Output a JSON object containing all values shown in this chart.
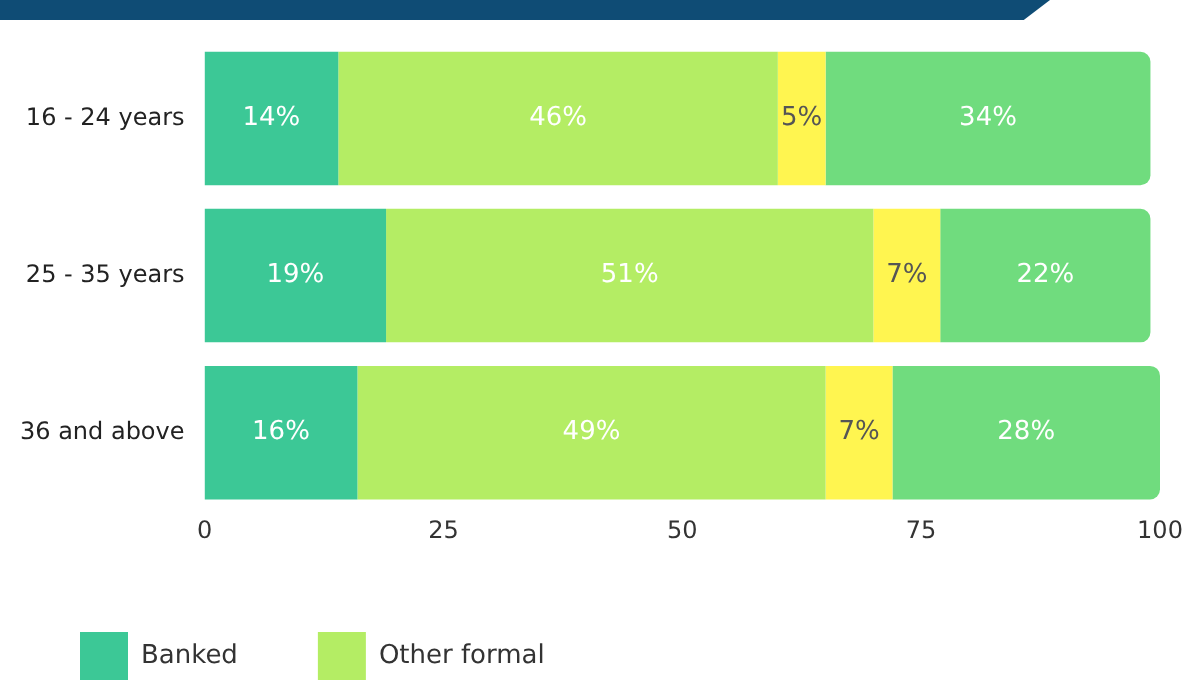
{
  "chart_data": {
    "type": "bar",
    "orientation": "horizontal",
    "stacked": true,
    "categories": [
      "16 - 24 years",
      "25 - 35 years",
      "36 and above"
    ],
    "xlim": [
      0,
      100
    ],
    "xticks": [
      0,
      25,
      50,
      75,
      100
    ],
    "grid": false,
    "legend": "bottom",
    "series": [
      {
        "name": "Banked",
        "color": "#3cc896",
        "values": [
          14,
          19,
          16
        ],
        "value_labels": [
          "14%",
          "19%",
          "16%"
        ]
      },
      {
        "name": "Other formal",
        "color": "#b4ed64",
        "values": [
          46,
          51,
          49
        ],
        "value_labels": [
          "46%",
          "51%",
          "49%"
        ]
      },
      {
        "color": "#fff550",
        "values": [
          5,
          7,
          7
        ],
        "value_labels": [
          "5%",
          "7%",
          "7%"
        ]
      },
      {
        "color": "#70dc7e",
        "values": [
          34,
          22,
          28
        ],
        "value_labels": [
          "34%",
          "22%",
          "28%"
        ]
      }
    ]
  }
}
